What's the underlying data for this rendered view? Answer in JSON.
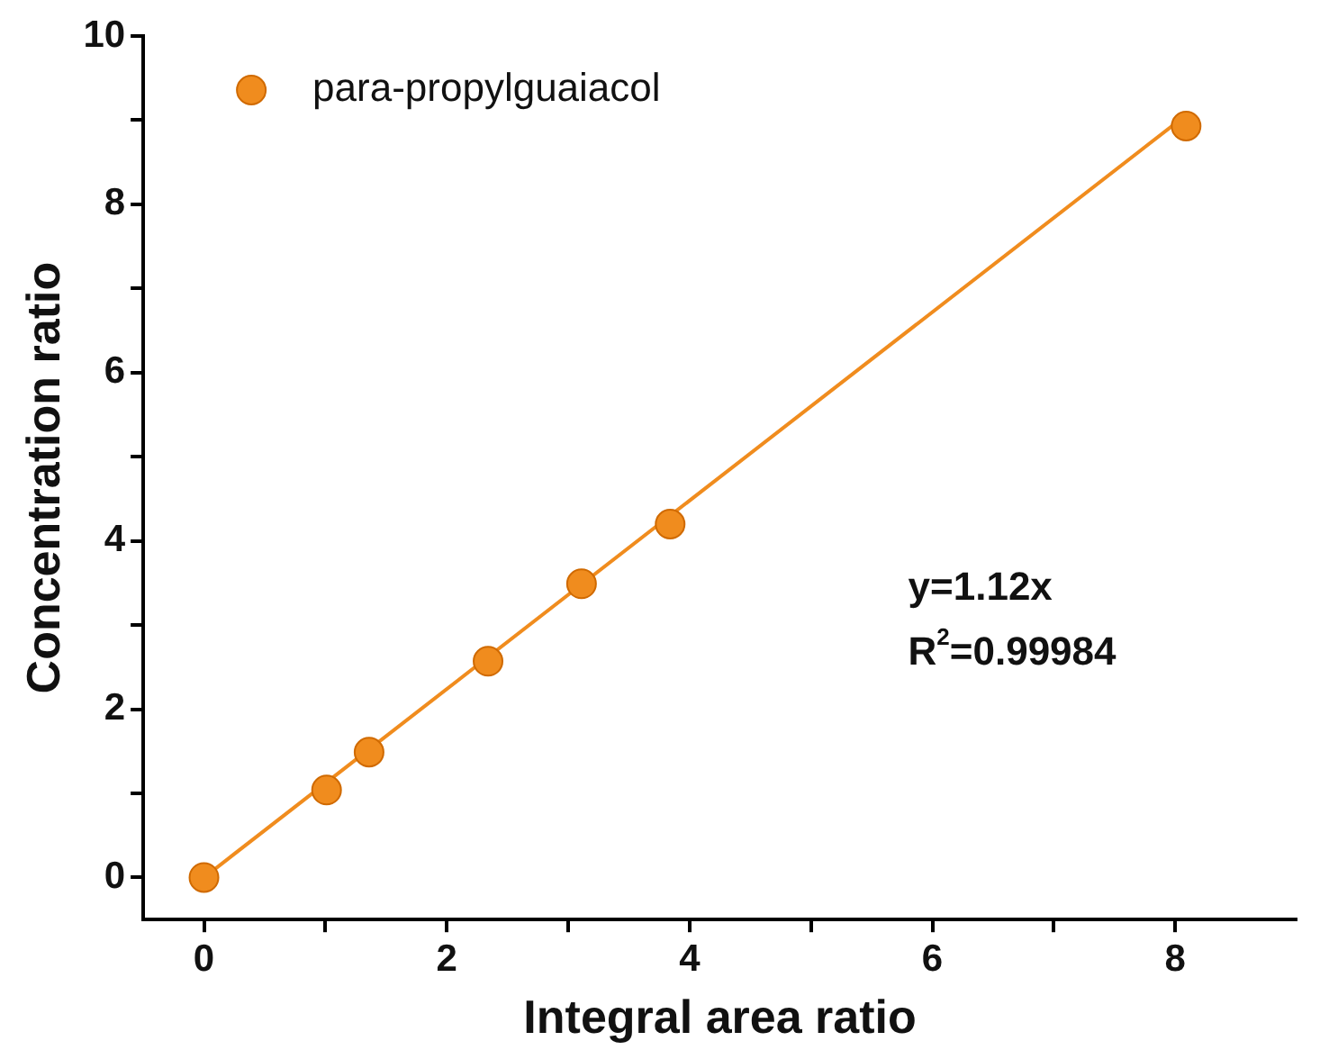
{
  "chart_data": {
    "type": "scatter",
    "xlabel": "Integral area ratio",
    "ylabel": "Concentration ratio",
    "series": [
      {
        "name": "para-propylguaiacol",
        "color": "#f08c1e",
        "x": [
          0,
          1.01,
          1.36,
          2.34,
          3.11,
          3.84,
          8.09
        ],
        "values": [
          0,
          1.04,
          1.49,
          2.57,
          3.49,
          4.2,
          8.93
        ]
      },
      {
        "type": "line",
        "color": "#f08c1e",
        "x": [
          0,
          8.09
        ],
        "values": [
          0,
          9.06
        ],
        "marker": "none"
      }
    ],
    "xlim": [
      -0.5,
      9
    ],
    "xticks": [
      0,
      {
        "value": 1,
        "label": null
      },
      2,
      {
        "value": 3,
        "label": null
      },
      4,
      {
        "value": 5,
        "label": null
      },
      6,
      {
        "value": 7,
        "label": null
      },
      8
    ],
    "ylim": [
      -0.5,
      10
    ],
    "yticks": [
      0,
      {
        "value": 1,
        "label": null
      },
      2,
      {
        "value": 3,
        "label": null
      },
      4,
      {
        "value": 5,
        "label": null
      },
      6,
      {
        "value": 7,
        "label": null
      },
      8,
      {
        "value": 9,
        "label": null
      },
      10
    ],
    "annotations": [
      "y=1.12x",
      "R$^{2}$=0.99984"
    ],
    "legend": "top left",
    "marker": "circle",
    "grid": false
  }
}
